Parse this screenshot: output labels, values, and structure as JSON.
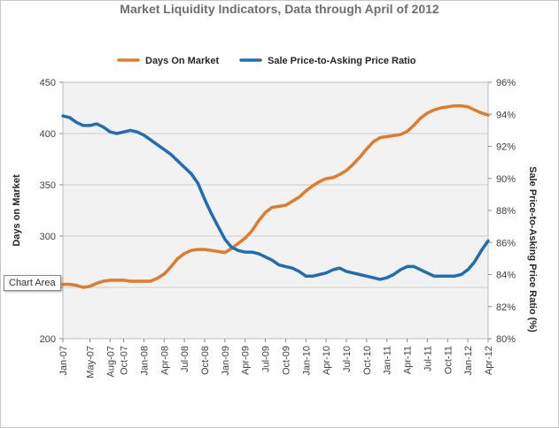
{
  "chart_data": {
    "type": "line",
    "title": "Market Liquidity Indicators, Data through April of 2012",
    "x_tick_labels": [
      "Jan-07",
      "May-07",
      "Aug-07",
      "Oct-07",
      "Jan-08",
      "Apr-08",
      "Jul-08",
      "Oct-08",
      "Jan-09",
      "Apr-09",
      "Jul-09",
      "Oct-09",
      "Jan-10",
      "Apr-10",
      "Jul-10",
      "Oct-10",
      "Jan-11",
      "Apr-11",
      "Jul-11",
      "Oct-11",
      "Jan-12",
      "Apr-12"
    ],
    "x_tick_months": [
      0,
      4,
      7,
      9,
      12,
      15,
      18,
      21,
      24,
      27,
      30,
      33,
      36,
      39,
      42,
      45,
      48,
      51,
      54,
      57,
      60,
      63
    ],
    "x_range_months": [
      0,
      63
    ],
    "y_left": {
      "label": "Days on Market",
      "range": [
        200,
        450
      ],
      "ticks": [
        200,
        250,
        300,
        350,
        400,
        450
      ],
      "tick_labels": [
        "200",
        "250",
        "300",
        "350",
        "400",
        "450"
      ]
    },
    "y_right": {
      "label": "Sale Price-to-Asking Price Ratio (%)",
      "range": [
        80,
        96
      ],
      "ticks": [
        80,
        82,
        84,
        86,
        88,
        90,
        92,
        94,
        96
      ],
      "tick_labels": [
        "80%",
        "82%",
        "84%",
        "86%",
        "88%",
        "90%",
        "92%",
        "94%",
        "96%"
      ]
    },
    "grid": "horizontal",
    "legend_position": "top",
    "series": [
      {
        "name": "Days On Market",
        "axis": "left",
        "color": "#e07b2a",
        "values": [
          253,
          253,
          252,
          250,
          251,
          254,
          256,
          257,
          257,
          257,
          256,
          256,
          256,
          256,
          259,
          263,
          270,
          278,
          283,
          286,
          287,
          287,
          286,
          285,
          284,
          288,
          293,
          298,
          305,
          315,
          323,
          328,
          329,
          330,
          334,
          338,
          344,
          349,
          353,
          356,
          357,
          360,
          364,
          370,
          377,
          385,
          392,
          396,
          397,
          398,
          399,
          402,
          408,
          415,
          420,
          423,
          425,
          426,
          427,
          427,
          426,
          423,
          420,
          418
        ]
      },
      {
        "name": "Sale Price-to-Asking Price Ratio",
        "axis": "right",
        "color": "#1f6eb5",
        "values": [
          93.9,
          93.8,
          93.5,
          93.3,
          93.3,
          93.4,
          93.2,
          92.9,
          92.8,
          92.9,
          93.0,
          92.9,
          92.7,
          92.4,
          92.1,
          91.8,
          91.5,
          91.1,
          90.7,
          90.3,
          89.7,
          88.7,
          87.8,
          87.0,
          86.2,
          85.7,
          85.5,
          85.4,
          85.4,
          85.3,
          85.1,
          84.9,
          84.6,
          84.5,
          84.4,
          84.2,
          83.9,
          83.9,
          84.0,
          84.1,
          84.3,
          84.4,
          84.2,
          84.1,
          84.0,
          83.9,
          83.8,
          83.7,
          83.8,
          84.0,
          84.3,
          84.5,
          84.5,
          84.3,
          84.1,
          83.9,
          83.9,
          83.9,
          83.9,
          84.0,
          84.3,
          84.8,
          85.5,
          86.1
        ]
      }
    ]
  },
  "ui": {
    "tooltip_text": "Chart Area"
  }
}
